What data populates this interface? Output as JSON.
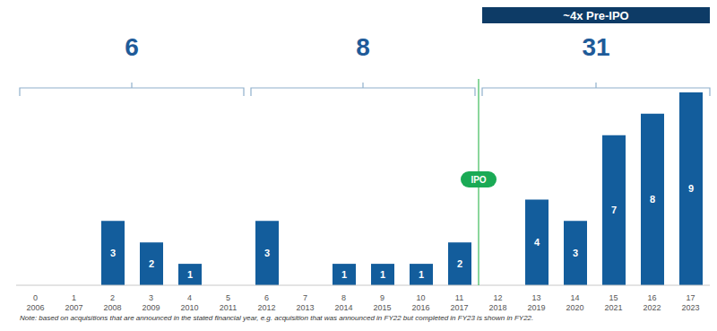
{
  "chart_data": {
    "type": "bar",
    "categories": [
      "2006",
      "2007",
      "2008",
      "2009",
      "2010",
      "2011",
      "2012",
      "2013",
      "2014",
      "2015",
      "2016",
      "2017",
      "2018",
      "2019",
      "2020",
      "2021",
      "2022",
      "2023"
    ],
    "fiscal_index": [
      0,
      1,
      2,
      3,
      4,
      5,
      6,
      7,
      8,
      9,
      10,
      11,
      12,
      13,
      14,
      15,
      16,
      17
    ],
    "values": [
      null,
      null,
      3,
      2,
      1,
      null,
      3,
      null,
      1,
      1,
      1,
      2,
      null,
      4,
      3,
      7,
      8,
      9
    ],
    "color": "#135d9c",
    "ylim": [
      0,
      10
    ],
    "grid": false,
    "data_labels": true,
    "tick_labels": "x",
    "groups": [
      {
        "label": 6,
        "from": "2006",
        "to": "2011"
      },
      {
        "label": 8,
        "from": "2012",
        "to": "2017"
      },
      {
        "label": 31,
        "from": "2018",
        "to": "2023",
        "banner": "~4x Pre-IPO"
      }
    ],
    "ipo": {
      "label": "IPO",
      "after": "2017"
    },
    "note": "Note: based on acquisitions that are announced in the stated financial year, e.g. acquisition that was announced in FY22 but completed in FY23 is shown in FY22."
  }
}
